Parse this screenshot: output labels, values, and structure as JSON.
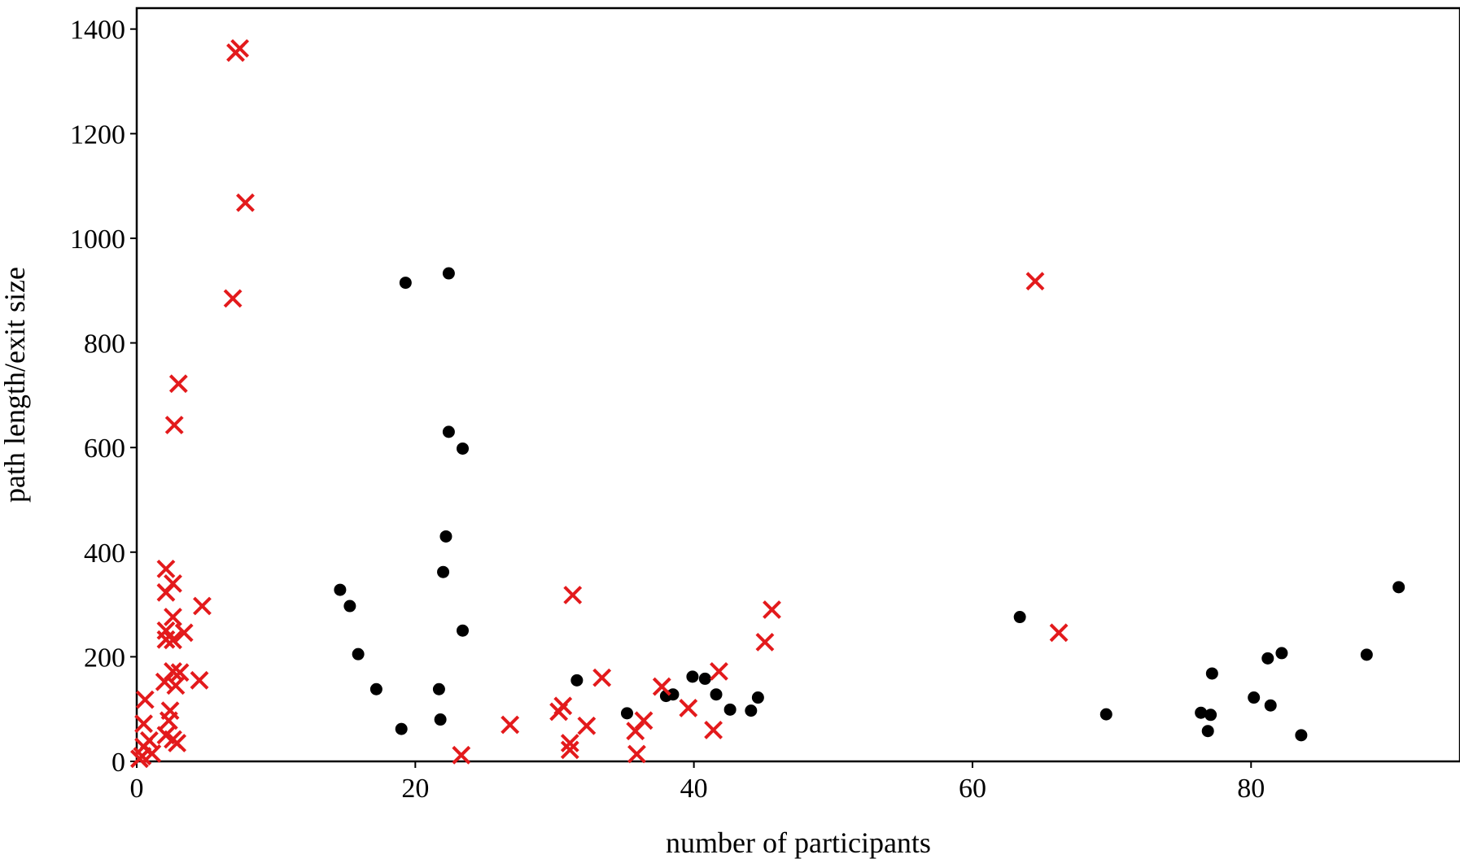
{
  "chart_data": {
    "type": "scatter",
    "xlabel": "number of participants",
    "ylabel": "path length/exit size",
    "xlim": [
      0,
      95
    ],
    "ylim": [
      0,
      1440
    ],
    "x_ticks": [
      0,
      20,
      40,
      60,
      80
    ],
    "y_ticks": [
      0,
      200,
      400,
      600,
      800,
      1000,
      1200,
      1400
    ],
    "grid": false,
    "legend": "none",
    "series": [
      {
        "marker": "circle",
        "color": "#000000",
        "points": [
          [
            19.3,
            915
          ],
          [
            22.4,
            933
          ],
          [
            22.4,
            630
          ],
          [
            23.4,
            598
          ],
          [
            22.2,
            430
          ],
          [
            22.0,
            362
          ],
          [
            23.4,
            250
          ],
          [
            14.6,
            328
          ],
          [
            15.3,
            297
          ],
          [
            15.9,
            205
          ],
          [
            17.2,
            138
          ],
          [
            19.0,
            62
          ],
          [
            21.7,
            138
          ],
          [
            21.8,
            80
          ],
          [
            31.6,
            155
          ],
          [
            35.2,
            92
          ],
          [
            38.0,
            125
          ],
          [
            38.5,
            128
          ],
          [
            39.9,
            162
          ],
          [
            40.8,
            158
          ],
          [
            41.6,
            128
          ],
          [
            42.6,
            99
          ],
          [
            44.1,
            97
          ],
          [
            44.6,
            122
          ],
          [
            63.4,
            276
          ],
          [
            69.6,
            90
          ],
          [
            76.4,
            93
          ],
          [
            76.9,
            58
          ],
          [
            77.1,
            89
          ],
          [
            77.2,
            168
          ],
          [
            80.2,
            122
          ],
          [
            81.2,
            197
          ],
          [
            81.4,
            107
          ],
          [
            82.2,
            207
          ],
          [
            83.6,
            50
          ],
          [
            88.3,
            204
          ],
          [
            90.6,
            333
          ]
        ]
      },
      {
        "marker": "x",
        "color": "#e31a1c",
        "points": [
          [
            7.4,
            1363
          ],
          [
            7.1,
            1355
          ],
          [
            7.8,
            1068
          ],
          [
            6.9,
            885
          ],
          [
            3.0,
            722
          ],
          [
            2.7,
            643
          ],
          [
            64.5,
            918
          ],
          [
            66.2,
            246
          ],
          [
            31.3,
            318
          ],
          [
            45.6,
            290
          ],
          [
            45.1,
            228
          ],
          [
            41.8,
            172
          ],
          [
            33.4,
            160
          ],
          [
            37.7,
            143
          ],
          [
            30.6,
            106
          ],
          [
            30.3,
            95
          ],
          [
            39.6,
            102
          ],
          [
            36.4,
            78
          ],
          [
            32.3,
            68
          ],
          [
            26.8,
            70
          ],
          [
            35.8,
            58
          ],
          [
            41.4,
            60
          ],
          [
            31.1,
            35
          ],
          [
            31.1,
            22
          ],
          [
            23.3,
            12
          ],
          [
            35.9,
            14
          ],
          [
            2.1,
            368
          ],
          [
            2.6,
            340
          ],
          [
            2.1,
            323
          ],
          [
            4.7,
            297
          ],
          [
            2.6,
            276
          ],
          [
            2.1,
            250
          ],
          [
            3.4,
            246
          ],
          [
            2.6,
            232
          ],
          [
            2.1,
            233
          ],
          [
            2.6,
            172
          ],
          [
            3.1,
            170
          ],
          [
            4.5,
            155
          ],
          [
            2.0,
            152
          ],
          [
            2.8,
            145
          ],
          [
            2.4,
            97
          ],
          [
            2.3,
            78
          ],
          [
            0.6,
            118
          ],
          [
            0.5,
            72
          ],
          [
            2.1,
            50
          ],
          [
            2.6,
            42
          ],
          [
            2.9,
            35
          ],
          [
            0.9,
            40
          ],
          [
            0.5,
            28
          ],
          [
            1.1,
            15
          ],
          [
            0.4,
            10
          ],
          [
            0.2,
            5
          ]
        ]
      }
    ]
  }
}
